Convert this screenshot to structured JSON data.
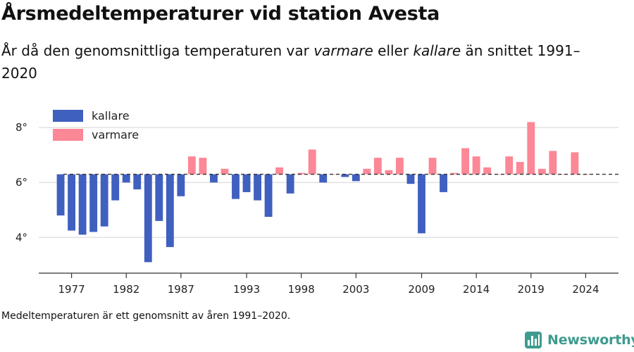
{
  "title": "Årsmedeltemperaturer vid station Avesta",
  "subtitle": {
    "part1": "År då den genomsnittliga temperaturen var ",
    "warmer": "varmare",
    "part2": " eller ",
    "colder": "kallare",
    "part3": " än snittet 1991–2020"
  },
  "footnote": "Medeltemperaturen är ett genomsnitt av åren 1991–2020.",
  "brand": {
    "name": "Newsworthy",
    "icon": "bar-chart-logo-icon"
  },
  "colors": {
    "colder": "#4060c0",
    "warmer": "#fc8796",
    "brand": "#3e9b8e"
  },
  "chart_data": {
    "type": "bar",
    "baseline": 6.3,
    "baseline_style": "dashed",
    "ylim": [
      2.7,
      8.8
    ],
    "y_ticks": [
      4,
      6,
      8
    ],
    "y_tick_labels": [
      "4°",
      "6°",
      "8°"
    ],
    "x_ticks": [
      1977,
      1982,
      1987,
      1993,
      1998,
      2003,
      2009,
      2014,
      2019,
      2024
    ],
    "xlim": [
      1974,
      2027
    ],
    "grid": true,
    "legend_position": "top-left",
    "series": [
      {
        "name": "kallare",
        "color": "#4060c0"
      },
      {
        "name": "varmare",
        "color": "#fc8796"
      }
    ],
    "x": [
      1976,
      1977,
      1978,
      1979,
      1980,
      1981,
      1982,
      1983,
      1984,
      1985,
      1986,
      1987,
      1988,
      1989,
      1990,
      1991,
      1992,
      1993,
      1994,
      1995,
      1996,
      1997,
      1998,
      1999,
      2000,
      2001,
      2002,
      2003,
      2004,
      2005,
      2006,
      2007,
      2008,
      2009,
      2010,
      2011,
      2012,
      2013,
      2014,
      2015,
      2016,
      2017,
      2018,
      2019,
      2020,
      2021,
      2022,
      2023,
      2024
    ],
    "values": [
      4.8,
      4.25,
      4.1,
      4.2,
      4.4,
      5.35,
      6.0,
      5.75,
      3.1,
      4.6,
      3.65,
      5.5,
      6.95,
      6.9,
      6.0,
      6.5,
      5.4,
      5.65,
      5.35,
      4.75,
      6.55,
      5.6,
      6.35,
      7.2,
      6.0,
      6.3,
      6.2,
      6.05,
      6.5,
      6.9,
      6.45,
      6.9,
      5.95,
      4.15,
      6.9,
      5.65,
      6.35,
      7.25,
      6.95,
      6.55,
      6.3,
      6.95,
      6.75,
      8.2,
      6.5,
      7.15,
      6.3,
      7.1,
      6.3
    ]
  }
}
